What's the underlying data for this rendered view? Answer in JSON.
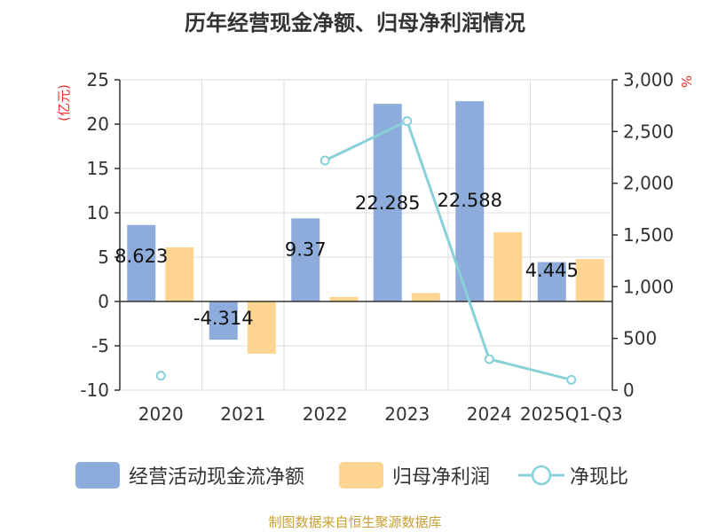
{
  "chart_data": {
    "type": "bar",
    "title": "历年经营现金净额、归母净利润情况",
    "categories": [
      "2020",
      "2021",
      "2022",
      "2023",
      "2024",
      "2025Q1-Q3"
    ],
    "y_left": {
      "label": "(亿元)",
      "min": -10,
      "max": 25,
      "ticks": [
        -10,
        -5,
        0,
        5,
        10,
        15,
        20,
        25
      ]
    },
    "y_right": {
      "label": "%",
      "min": 0,
      "max": 3000,
      "ticks": [
        0,
        500,
        1000,
        1500,
        2000,
        2500,
        3000
      ],
      "tick_labels": [
        "0",
        "500",
        "1,000",
        "1,500",
        "2,000",
        "2,500",
        "3,000"
      ]
    },
    "series": [
      {
        "name": "经营活动现金流净额",
        "type": "bar",
        "axis": "left",
        "color": "#8eacdb",
        "values": [
          8.623,
          -4.314,
          9.37,
          22.285,
          22.588,
          4.445
        ],
        "labels": [
          "8.623",
          "-4.314",
          "9.37",
          "22.285",
          "22.588",
          "4.445"
        ]
      },
      {
        "name": "归母净利润",
        "type": "bar",
        "axis": "left",
        "color": "#ffd591",
        "values": [
          6.1,
          -5.9,
          0.5,
          0.95,
          7.8,
          4.8
        ]
      },
      {
        "name": "净现比",
        "type": "line",
        "axis": "right",
        "color": "#88d1d8",
        "values": [
          140,
          null,
          2220,
          2600,
          300,
          100
        ]
      }
    ]
  },
  "source": "制图数据来自恒生聚源数据库"
}
